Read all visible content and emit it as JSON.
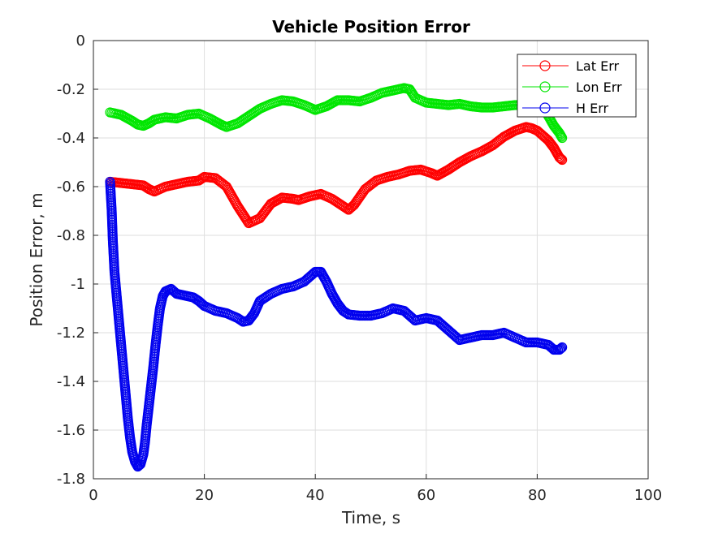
{
  "chart_data": {
    "type": "scatter",
    "title": "Vehicle Position Error",
    "xlabel": "Time, s",
    "ylabel": "Position Error, m",
    "xlim": [
      0,
      100
    ],
    "ylim": [
      -1.8,
      0
    ],
    "xticks": [
      0,
      20,
      40,
      60,
      80,
      100
    ],
    "yticks": [
      0,
      -0.2,
      -0.4,
      -0.6,
      -0.8,
      -1,
      -1.2,
      -1.4,
      -1.6,
      -1.8
    ],
    "grid": true,
    "legend_position": "top-right",
    "marker": "circle",
    "series": [
      {
        "name": "Lat Err",
        "color": "#ff0000",
        "points": [
          [
            3,
            -0.58
          ],
          [
            5,
            -0.585
          ],
          [
            7,
            -0.59
          ],
          [
            9,
            -0.595
          ],
          [
            10,
            -0.61
          ],
          [
            11,
            -0.62
          ],
          [
            13,
            -0.6
          ],
          [
            15,
            -0.59
          ],
          [
            17,
            -0.58
          ],
          [
            19,
            -0.575
          ],
          [
            20,
            -0.56
          ],
          [
            22,
            -0.565
          ],
          [
            24,
            -0.6
          ],
          [
            26,
            -0.68
          ],
          [
            28,
            -0.75
          ],
          [
            30,
            -0.73
          ],
          [
            32,
            -0.67
          ],
          [
            34,
            -0.645
          ],
          [
            36,
            -0.65
          ],
          [
            37,
            -0.655
          ],
          [
            39,
            -0.64
          ],
          [
            41,
            -0.63
          ],
          [
            43,
            -0.65
          ],
          [
            45,
            -0.68
          ],
          [
            46,
            -0.695
          ],
          [
            47,
            -0.675
          ],
          [
            49,
            -0.61
          ],
          [
            51,
            -0.575
          ],
          [
            53,
            -0.56
          ],
          [
            55,
            -0.55
          ],
          [
            57,
            -0.535
          ],
          [
            59,
            -0.53
          ],
          [
            61,
            -0.545
          ],
          [
            62,
            -0.555
          ],
          [
            64,
            -0.53
          ],
          [
            66,
            -0.5
          ],
          [
            68,
            -0.475
          ],
          [
            70,
            -0.455
          ],
          [
            72,
            -0.43
          ],
          [
            74,
            -0.395
          ],
          [
            76,
            -0.37
          ],
          [
            78,
            -0.355
          ],
          [
            79,
            -0.36
          ],
          [
            80,
            -0.37
          ],
          [
            82,
            -0.41
          ],
          [
            83,
            -0.44
          ],
          [
            84,
            -0.48
          ],
          [
            84.5,
            -0.49
          ]
        ]
      },
      {
        "name": "Lon Err",
        "color": "#00e600",
        "points": [
          [
            3,
            -0.295
          ],
          [
            5,
            -0.305
          ],
          [
            7,
            -0.33
          ],
          [
            8,
            -0.345
          ],
          [
            9,
            -0.35
          ],
          [
            10,
            -0.34
          ],
          [
            11,
            -0.325
          ],
          [
            13,
            -0.315
          ],
          [
            15,
            -0.32
          ],
          [
            17,
            -0.305
          ],
          [
            19,
            -0.3
          ],
          [
            21,
            -0.32
          ],
          [
            23,
            -0.345
          ],
          [
            24,
            -0.355
          ],
          [
            26,
            -0.34
          ],
          [
            28,
            -0.31
          ],
          [
            30,
            -0.28
          ],
          [
            32,
            -0.26
          ],
          [
            34,
            -0.245
          ],
          [
            36,
            -0.25
          ],
          [
            38,
            -0.265
          ],
          [
            40,
            -0.285
          ],
          [
            42,
            -0.27
          ],
          [
            44,
            -0.245
          ],
          [
            46,
            -0.245
          ],
          [
            48,
            -0.25
          ],
          [
            50,
            -0.235
          ],
          [
            52,
            -0.215
          ],
          [
            54,
            -0.205
          ],
          [
            56,
            -0.195
          ],
          [
            57,
            -0.2
          ],
          [
            58,
            -0.235
          ],
          [
            60,
            -0.255
          ],
          [
            62,
            -0.26
          ],
          [
            64,
            -0.265
          ],
          [
            66,
            -0.26
          ],
          [
            68,
            -0.27
          ],
          [
            70,
            -0.275
          ],
          [
            72,
            -0.275
          ],
          [
            74,
            -0.27
          ],
          [
            76,
            -0.265
          ],
          [
            78,
            -0.265
          ],
          [
            80,
            -0.27
          ],
          [
            81,
            -0.275
          ],
          [
            82,
            -0.31
          ],
          [
            83,
            -0.35
          ],
          [
            84,
            -0.38
          ],
          [
            84.5,
            -0.4
          ]
        ]
      },
      {
        "name": "H Err",
        "color": "#0000ee",
        "points": [
          [
            3,
            -0.58
          ],
          [
            3.3,
            -0.7
          ],
          [
            3.5,
            -0.82
          ],
          [
            3.8,
            -0.95
          ],
          [
            4.2,
            -1.05
          ],
          [
            4.6,
            -1.15
          ],
          [
            5,
            -1.25
          ],
          [
            5.4,
            -1.35
          ],
          [
            5.8,
            -1.45
          ],
          [
            6.2,
            -1.55
          ],
          [
            6.6,
            -1.63
          ],
          [
            7,
            -1.69
          ],
          [
            7.5,
            -1.73
          ],
          [
            8,
            -1.75
          ],
          [
            8.5,
            -1.74
          ],
          [
            9,
            -1.7
          ],
          [
            9.3,
            -1.65
          ],
          [
            9.6,
            -1.58
          ],
          [
            10,
            -1.5
          ],
          [
            10.4,
            -1.42
          ],
          [
            10.8,
            -1.34
          ],
          [
            11.2,
            -1.25
          ],
          [
            11.6,
            -1.17
          ],
          [
            12,
            -1.1
          ],
          [
            12.5,
            -1.05
          ],
          [
            13,
            -1.03
          ],
          [
            14,
            -1.02
          ],
          [
            15,
            -1.04
          ],
          [
            16,
            -1.045
          ],
          [
            17,
            -1.05
          ],
          [
            18,
            -1.055
          ],
          [
            19,
            -1.07
          ],
          [
            20,
            -1.09
          ],
          [
            22,
            -1.11
          ],
          [
            24,
            -1.12
          ],
          [
            26,
            -1.14
          ],
          [
            27,
            -1.155
          ],
          [
            28,
            -1.15
          ],
          [
            29,
            -1.12
          ],
          [
            30,
            -1.07
          ],
          [
            32,
            -1.04
          ],
          [
            34,
            -1.02
          ],
          [
            36,
            -1.01
          ],
          [
            38,
            -0.99
          ],
          [
            40,
            -0.95
          ],
          [
            41,
            -0.95
          ],
          [
            42,
            -0.99
          ],
          [
            43,
            -1.04
          ],
          [
            44,
            -1.08
          ],
          [
            45,
            -1.11
          ],
          [
            46,
            -1.125
          ],
          [
            48,
            -1.13
          ],
          [
            50,
            -1.13
          ],
          [
            52,
            -1.12
          ],
          [
            54,
            -1.1
          ],
          [
            56,
            -1.11
          ],
          [
            58,
            -1.15
          ],
          [
            60,
            -1.14
          ],
          [
            62,
            -1.15
          ],
          [
            64,
            -1.19
          ],
          [
            66,
            -1.23
          ],
          [
            68,
            -1.22
          ],
          [
            70,
            -1.21
          ],
          [
            72,
            -1.21
          ],
          [
            74,
            -1.2
          ],
          [
            76,
            -1.22
          ],
          [
            78,
            -1.24
          ],
          [
            80,
            -1.24
          ],
          [
            82,
            -1.25
          ],
          [
            83,
            -1.27
          ],
          [
            84,
            -1.27
          ],
          [
            84.5,
            -1.26
          ]
        ]
      }
    ]
  }
}
